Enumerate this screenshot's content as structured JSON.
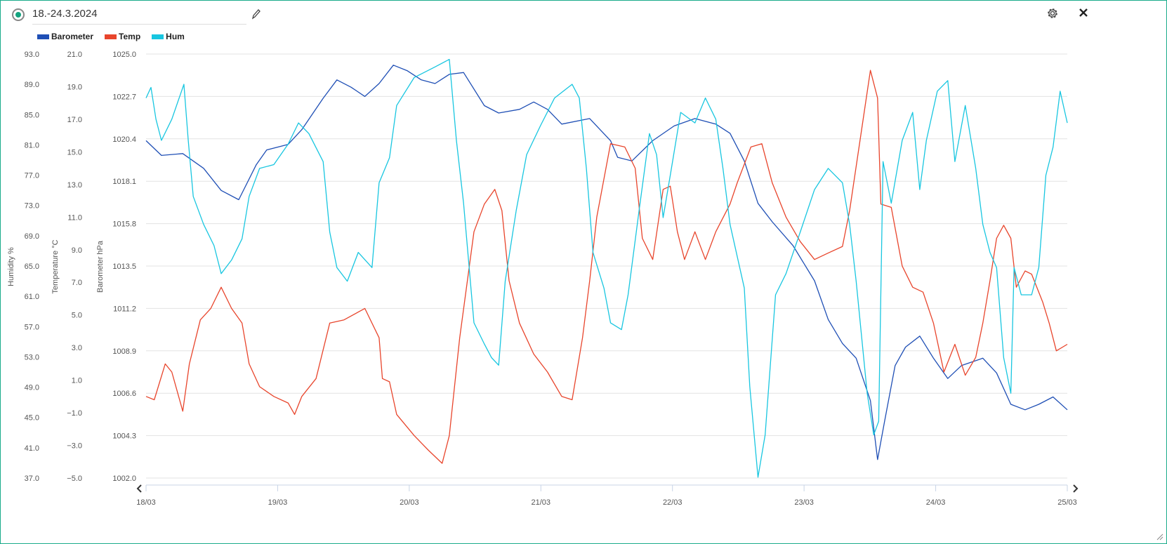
{
  "header": {
    "title": "18.-24.3.2024",
    "edit_icon": "pencil-icon",
    "settings_icon": "gear-icon",
    "close_icon": "close-icon",
    "status_icon": "radio-selected-icon"
  },
  "colors": {
    "border": "#1aab8a",
    "barometer": "#1f4fb5",
    "temp": "#e8452c",
    "hum": "#18c6e0"
  },
  "chart_data": {
    "type": "line",
    "legend": [
      {
        "name": "Barometer",
        "color": "#1f4fb5"
      },
      {
        "name": "Temp",
        "color": "#e8452c"
      },
      {
        "name": "Hum",
        "color": "#18c6e0"
      }
    ],
    "legend_position": "top-left",
    "x_unit": "hours since 18/03 00:00",
    "xlim": [
      0,
      168
    ],
    "x_ticks": [
      {
        "h": 0,
        "label": "18/03"
      },
      {
        "h": 24,
        "label": "19/03"
      },
      {
        "h": 48,
        "label": "20/03"
      },
      {
        "h": 72,
        "label": "21/03"
      },
      {
        "h": 96,
        "label": "22/03"
      },
      {
        "h": 120,
        "label": "23/03"
      },
      {
        "h": 144,
        "label": "24/03"
      },
      {
        "h": 168,
        "label": "25/03"
      }
    ],
    "axes": {
      "hum": {
        "label": "Humidity %",
        "ylim": [
          37,
          93
        ],
        "ticks": [
          "93.0",
          "89.0",
          "85.0",
          "81.0",
          "77.0",
          "73.0",
          "69.0",
          "65.0",
          "61.0",
          "57.0",
          "53.0",
          "49.0",
          "45.0",
          "41.0",
          "37.0"
        ]
      },
      "temp": {
        "label": "Temperature °C",
        "ylim": [
          -5,
          21
        ],
        "ticks": [
          "21.0",
          "19.0",
          "17.0",
          "15.0",
          "13.0",
          "11.0",
          "9.0",
          "7.0",
          "5.0",
          "3.0",
          "1.0",
          "−1.0",
          "−3.0",
          "−5.0"
        ]
      },
      "baro": {
        "label": "Barometer hPa",
        "ylim": [
          1002,
          1025
        ],
        "ticks": [
          "1025.0",
          "1022.7",
          "1020.4",
          "1018.1",
          "1015.8",
          "1013.5",
          "1011.2",
          "1008.9",
          "1006.6",
          "1004.3",
          "1002.0"
        ]
      }
    },
    "grid": true,
    "series": [
      {
        "name": "Barometer",
        "axis": "baro",
        "x": [
          0,
          2.8,
          6.7,
          10.5,
          13.7,
          16.9,
          20.1,
          22,
          25.9,
          28.4,
          32.3,
          34.8,
          37.4,
          39.9,
          42.5,
          45.1,
          47.6,
          50.2,
          52.7,
          55.3,
          57.9,
          61.7,
          64.3,
          68.1,
          70.7,
          73.2,
          75.8,
          80.9,
          84.7,
          86,
          88.6,
          92.4,
          96.3,
          100.1,
          103.9,
          106.5,
          109.1,
          111.6,
          114.2,
          118,
          121.9,
          124.4,
          127,
          129.5,
          132.1,
          133.4,
          134.7,
          136.6,
          138.5,
          141.1,
          143.6,
          146.2,
          148.7,
          152.6,
          155.1,
          157.7,
          160.3,
          162.8,
          165.4,
          168
        ],
        "y": [
          1020.3,
          1019.5,
          1019.6,
          1018.8,
          1017.6,
          1017.1,
          1019.0,
          1019.8,
          1020.1,
          1020.9,
          1022.6,
          1023.6,
          1023.2,
          1022.7,
          1023.4,
          1024.4,
          1024.1,
          1023.6,
          1023.4,
          1023.9,
          1024.0,
          1022.2,
          1021.8,
          1022.0,
          1022.4,
          1022.0,
          1021.2,
          1021.5,
          1020.3,
          1019.4,
          1019.2,
          1020.3,
          1021.1,
          1021.5,
          1021.2,
          1020.7,
          1019.2,
          1016.9,
          1015.9,
          1014.6,
          1012.7,
          1010.6,
          1009.3,
          1008.5,
          1006.2,
          1003.0,
          1005.1,
          1008.1,
          1009.1,
          1009.7,
          1008.5,
          1007.4,
          1008.1,
          1008.5,
          1007.7,
          1006.0,
          1005.7,
          1006.0,
          1006.4,
          1005.7
        ]
      },
      {
        "name": "Temp",
        "axis": "temp",
        "x": [
          0,
          1.5,
          3.5,
          4.7,
          6.7,
          7.9,
          9.9,
          11.8,
          13.7,
          15.6,
          17.5,
          18.8,
          20.7,
          23.3,
          25.9,
          27.1,
          28.4,
          31,
          33.5,
          36.1,
          39.9,
          42.5,
          43.1,
          44.4,
          45.7,
          48.9,
          51.5,
          54,
          55.3,
          57.2,
          59.8,
          61.7,
          63.6,
          64.9,
          66.2,
          68.1,
          70.7,
          73.2,
          75.8,
          77.7,
          79.6,
          80.9,
          82.2,
          84.7,
          87.3,
          89.2,
          90.5,
          92.4,
          94.3,
          95.6,
          96.9,
          98.2,
          100.1,
          102,
          103.9,
          106.5,
          107.8,
          110.3,
          112.3,
          114.2,
          116.7,
          119.3,
          121.9,
          124.4,
          127,
          128.3,
          130.2,
          132.1,
          133.4,
          134,
          135.9,
          137.9,
          139.8,
          141.7,
          143.6,
          145.5,
          147.5,
          149.4,
          151.3,
          152.6,
          153.9,
          155.1,
          156.4,
          157.7,
          158.7,
          160.3,
          161.5,
          163.5,
          164.7,
          166,
          168
        ],
        "y": [
          0.0,
          -0.2,
          2.0,
          1.5,
          -0.9,
          2.0,
          4.7,
          5.4,
          6.7,
          5.4,
          4.5,
          2.0,
          0.6,
          0.0,
          -0.4,
          -1.1,
          0.0,
          1.1,
          4.5,
          4.7,
          5.4,
          3.6,
          1.1,
          0.9,
          -1.1,
          -2.4,
          -3.3,
          -4.1,
          -2.4,
          3.6,
          10.1,
          11.8,
          12.7,
          11.4,
          7.1,
          4.5,
          2.6,
          1.5,
          0.0,
          -0.2,
          3.6,
          7.1,
          11.0,
          15.5,
          15.3,
          14.0,
          9.7,
          8.4,
          12.7,
          12.9,
          10.1,
          8.4,
          10.1,
          8.4,
          10.1,
          11.8,
          13.1,
          15.3,
          15.5,
          13.1,
          11.0,
          9.5,
          8.4,
          8.8,
          9.2,
          11.4,
          15.7,
          20.0,
          18.3,
          11.8,
          11.6,
          8.0,
          6.7,
          6.4,
          4.5,
          1.5,
          3.2,
          1.3,
          2.4,
          4.5,
          7.1,
          9.7,
          10.5,
          9.7,
          6.7,
          7.7,
          7.5,
          5.8,
          4.5,
          2.8,
          3.2
        ]
      },
      {
        "name": "Hum",
        "axis": "hum",
        "x": [
          0,
          0.9,
          1.8,
          2.8,
          4.7,
          6.9,
          7.7,
          8.6,
          10.5,
          12.4,
          13.7,
          15.6,
          17.5,
          18.8,
          20.7,
          23.3,
          25.9,
          27.8,
          29.7,
          32.3,
          33.5,
          34.8,
          36.7,
          38.7,
          41.2,
          42.5,
          44.4,
          45.7,
          48.9,
          52.7,
          55.3,
          56.6,
          57.9,
          59.8,
          61.7,
          63,
          64.3,
          65.5,
          67.5,
          69.4,
          71.9,
          74.5,
          77.7,
          79,
          80.3,
          81.5,
          83.5,
          84.7,
          86.7,
          87.9,
          89.9,
          91.8,
          93.1,
          94.3,
          95.6,
          97.5,
          100.1,
          102,
          103.9,
          105.2,
          106.5,
          109.1,
          110.1,
          111.6,
          112.9,
          114.8,
          116.7,
          119.3,
          121.9,
          124.4,
          127,
          128.3,
          129.5,
          131.5,
          132.7,
          133.6,
          134.4,
          135.9,
          137.9,
          139.8,
          141.1,
          142.3,
          144.3,
          146.2,
          147.5,
          149.4,
          151.3,
          152.6,
          153.9,
          155.1,
          156.4,
          157.7,
          158.3,
          159.6,
          161.5,
          162.8,
          164.1,
          165.4,
          166.7,
          168
        ],
        "y": [
          87.2,
          88.6,
          84.4,
          81.6,
          84.4,
          89.0,
          81.6,
          74.2,
          70.5,
          67.7,
          64.0,
          65.8,
          68.6,
          74.2,
          77.9,
          78.4,
          81.1,
          83.9,
          82.5,
          78.8,
          69.5,
          64.8,
          63.0,
          66.8,
          64.8,
          76.0,
          79.3,
          86.2,
          89.9,
          91.3,
          92.3,
          81.6,
          73.3,
          57.5,
          54.7,
          52.9,
          51.9,
          63.0,
          72.3,
          79.7,
          83.5,
          87.2,
          89.0,
          87.2,
          77.9,
          66.8,
          62.1,
          57.5,
          56.6,
          61.2,
          72.3,
          82.5,
          79.7,
          71.4,
          77.0,
          85.3,
          83.9,
          87.2,
          84.4,
          77.9,
          70.5,
          62.1,
          49.1,
          37.1,
          42.7,
          61.2,
          64.0,
          69.5,
          75.1,
          77.9,
          76.0,
          70.5,
          63.0,
          48.2,
          42.7,
          44.5,
          78.8,
          73.3,
          81.6,
          85.3,
          75.1,
          81.6,
          88.1,
          89.5,
          78.8,
          86.2,
          77.9,
          70.5,
          66.8,
          64.8,
          52.9,
          48.2,
          64.8,
          61.2,
          61.2,
          64.8,
          77.0,
          80.7,
          88.1,
          83.9
        ]
      }
    ]
  }
}
